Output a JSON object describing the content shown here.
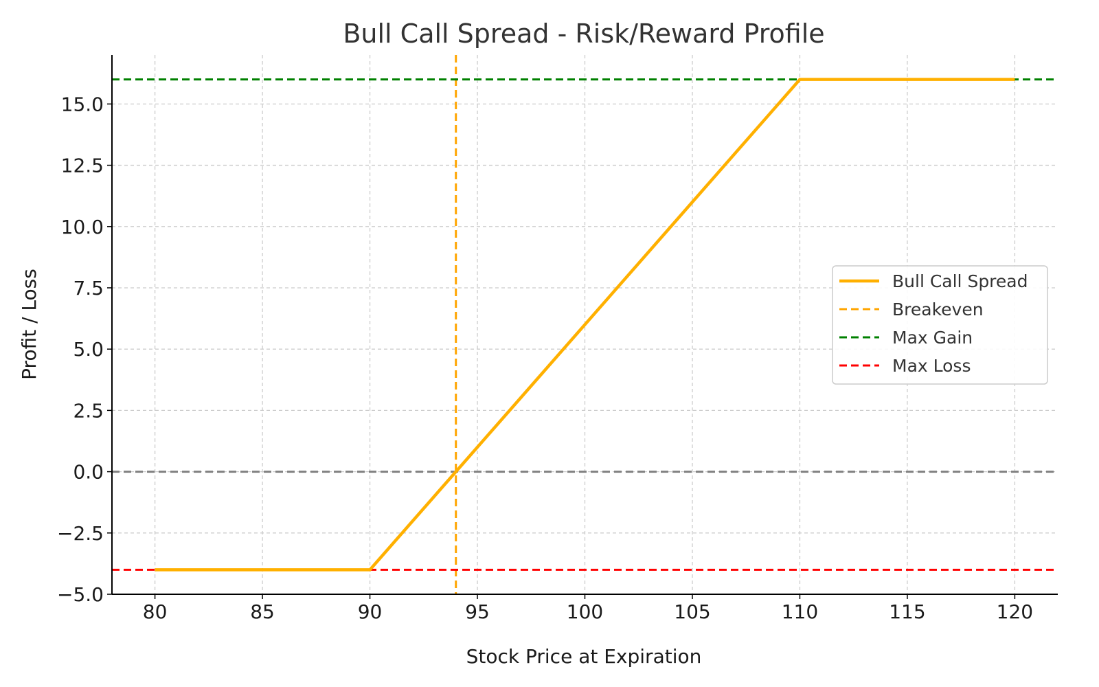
{
  "chart_data": {
    "type": "line",
    "title": "Bull Call Spread - Risk/Reward Profile",
    "xlabel": "Stock Price at Expiration",
    "ylabel": "Profit / Loss",
    "xlim": [
      78,
      122
    ],
    "ylim": [
      -5,
      17
    ],
    "x_ticks": [
      80,
      85,
      90,
      95,
      100,
      105,
      110,
      115,
      120
    ],
    "x_tick_labels": [
      "80",
      "85",
      "90",
      "95",
      "100",
      "105",
      "110",
      "115",
      "120"
    ],
    "y_ticks": [
      -5,
      -2.5,
      0,
      2.5,
      5,
      7.5,
      10,
      12.5,
      15
    ],
    "y_tick_labels": [
      "−5.0",
      "−2.5",
      "0.0",
      "2.5",
      "5.0",
      "7.5",
      "10.0",
      "12.5",
      "15.0"
    ],
    "grid": true,
    "legend_position": "center-right",
    "series": [
      {
        "name": "Bull Call Spread",
        "color": "#FFB000",
        "style": "solid",
        "x": [
          80,
          90,
          110,
          120
        ],
        "y": [
          -4,
          -4,
          16,
          16
        ]
      }
    ],
    "reference_lines": [
      {
        "name": "Breakeven",
        "orientation": "vertical",
        "value": 94,
        "color": "#FFA500",
        "style": "dashed"
      },
      {
        "name": "Max Gain",
        "orientation": "horizontal",
        "value": 16,
        "color": "#008000",
        "style": "dashed"
      },
      {
        "name": "Max Loss",
        "orientation": "horizontal",
        "value": -4,
        "color": "#FF0000",
        "style": "dashed"
      },
      {
        "name": "",
        "orientation": "horizontal",
        "value": 0,
        "color": "#808080",
        "style": "dashed"
      }
    ],
    "legend": [
      {
        "label": "Bull Call Spread",
        "color": "#FFB000",
        "style": "solid"
      },
      {
        "label": "Breakeven",
        "color": "#FFA500",
        "style": "dashed"
      },
      {
        "label": "Max Gain",
        "color": "#008000",
        "style": "dashed"
      },
      {
        "label": "Max Loss",
        "color": "#FF0000",
        "style": "dashed"
      }
    ]
  }
}
